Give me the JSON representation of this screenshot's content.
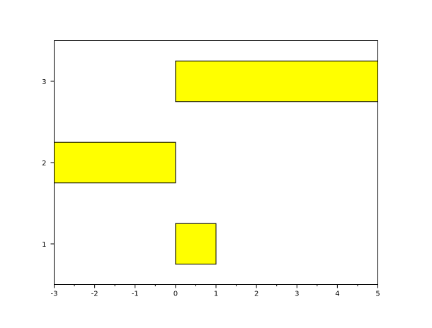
{
  "chart_data": {
    "type": "bar",
    "orientation": "horizontal",
    "categories": [
      1,
      2,
      3
    ],
    "values": [
      1,
      -3,
      5
    ],
    "bar_width": 0.5,
    "bar_color": "#ffff00",
    "bar_edge_color": "#000000",
    "xlim": [
      -3,
      5
    ],
    "ylim": [
      0.5,
      3.5
    ],
    "xticks": [
      "-3",
      "-2",
      "-1",
      "0",
      "1",
      "2",
      "3",
      "4",
      "5"
    ],
    "yticks": [
      "1",
      "2",
      "3"
    ],
    "title": "",
    "xlabel": "",
    "ylabel": "",
    "grid": false
  }
}
